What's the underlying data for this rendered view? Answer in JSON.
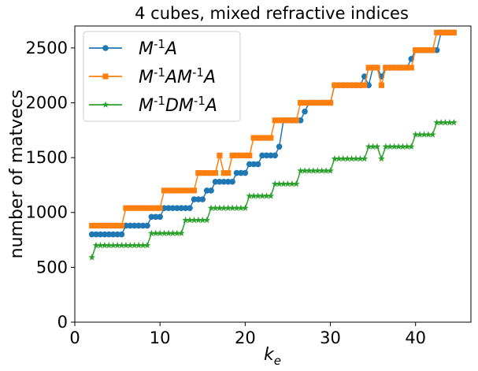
{
  "chart_data": {
    "type": "line",
    "title": "4 cubes, mixed refractive indices",
    "xlabel": "k",
    "xlabel_sub": "e",
    "ylabel": "number of matvecs",
    "xlim": [
      0,
      46.5
    ],
    "ylim": [
      0,
      2700
    ],
    "xticks": [
      0,
      10,
      20,
      30,
      40
    ],
    "yticks": [
      0,
      500,
      1000,
      1500,
      2000,
      2500
    ],
    "grid": false,
    "legend_position": "top-left",
    "series": [
      {
        "name": "M^{-1}A",
        "color": "#1f77b4",
        "marker": "circle",
        "points": [
          [
            2.0,
            800
          ],
          [
            2.5,
            800
          ],
          [
            3.0,
            800
          ],
          [
            3.5,
            800
          ],
          [
            4.0,
            800
          ],
          [
            4.5,
            800
          ],
          [
            5.0,
            800
          ],
          [
            5.5,
            800
          ],
          [
            6.0,
            880
          ],
          [
            6.5,
            880
          ],
          [
            7.0,
            880
          ],
          [
            7.5,
            880
          ],
          [
            8.0,
            880
          ],
          [
            8.5,
            880
          ],
          [
            9.0,
            960
          ],
          [
            9.5,
            960
          ],
          [
            10.0,
            960
          ],
          [
            10.5,
            1040
          ],
          [
            11.0,
            1040
          ],
          [
            11.5,
            1040
          ],
          [
            12.0,
            1040
          ],
          [
            12.5,
            1040
          ],
          [
            13.0,
            1040
          ],
          [
            13.5,
            1040
          ],
          [
            14.0,
            1120
          ],
          [
            14.5,
            1120
          ],
          [
            15.0,
            1120
          ],
          [
            15.5,
            1200
          ],
          [
            16.0,
            1200
          ],
          [
            16.5,
            1280
          ],
          [
            17.0,
            1280
          ],
          [
            17.5,
            1280
          ],
          [
            18.0,
            1280
          ],
          [
            18.5,
            1280
          ],
          [
            19.0,
            1360
          ],
          [
            19.5,
            1360
          ],
          [
            20.0,
            1360
          ],
          [
            20.5,
            1440
          ],
          [
            21.0,
            1440
          ],
          [
            21.5,
            1440
          ],
          [
            22.0,
            1520
          ],
          [
            22.5,
            1520
          ],
          [
            23.0,
            1520
          ],
          [
            23.5,
            1520
          ],
          [
            24.0,
            1600
          ],
          [
            24.5,
            1840
          ],
          [
            25.0,
            1840
          ],
          [
            25.5,
            1840
          ],
          [
            26.0,
            1840
          ],
          [
            26.5,
            1840
          ],
          [
            27.0,
            1920
          ],
          [
            27.5,
            2000
          ],
          [
            28.0,
            2000
          ],
          [
            28.5,
            2000
          ],
          [
            29.0,
            2000
          ],
          [
            29.5,
            2000
          ],
          [
            30.0,
            2000
          ],
          [
            30.5,
            2160
          ],
          [
            31.0,
            2160
          ],
          [
            31.5,
            2160
          ],
          [
            32.0,
            2160
          ],
          [
            32.5,
            2160
          ],
          [
            33.0,
            2160
          ],
          [
            33.5,
            2160
          ],
          [
            34.0,
            2240
          ],
          [
            34.5,
            2160
          ],
          [
            35.0,
            2320
          ],
          [
            35.5,
            2320
          ],
          [
            36.0,
            2240
          ],
          [
            36.5,
            2320
          ],
          [
            37.0,
            2320
          ],
          [
            37.5,
            2320
          ],
          [
            38.0,
            2320
          ],
          [
            38.5,
            2320
          ],
          [
            39.0,
            2320
          ],
          [
            39.5,
            2400
          ],
          [
            40.0,
            2480
          ],
          [
            40.5,
            2480
          ],
          [
            41.0,
            2480
          ],
          [
            41.5,
            2480
          ],
          [
            42.0,
            2480
          ],
          [
            42.5,
            2480
          ],
          [
            43.0,
            2640
          ],
          [
            43.5,
            2640
          ],
          [
            44.0,
            2640
          ],
          [
            44.5,
            2640
          ]
        ]
      },
      {
        "name": "M^{-1}AM^{-1}A",
        "color": "#ff7f0e",
        "marker": "square",
        "points": [
          [
            2.0,
            880
          ],
          [
            2.5,
            880
          ],
          [
            3.0,
            880
          ],
          [
            3.5,
            880
          ],
          [
            4.0,
            880
          ],
          [
            4.5,
            880
          ],
          [
            5.0,
            880
          ],
          [
            5.5,
            880
          ],
          [
            6.0,
            1040
          ],
          [
            6.5,
            1040
          ],
          [
            7.0,
            1040
          ],
          [
            7.5,
            1040
          ],
          [
            8.0,
            1040
          ],
          [
            8.5,
            1040
          ],
          [
            9.0,
            1040
          ],
          [
            9.5,
            1040
          ],
          [
            10.0,
            1040
          ],
          [
            10.5,
            1200
          ],
          [
            11.0,
            1200
          ],
          [
            11.5,
            1200
          ],
          [
            12.0,
            1200
          ],
          [
            12.5,
            1200
          ],
          [
            13.0,
            1200
          ],
          [
            13.5,
            1200
          ],
          [
            14.0,
            1200
          ],
          [
            14.5,
            1360
          ],
          [
            15.0,
            1360
          ],
          [
            15.5,
            1360
          ],
          [
            16.0,
            1360
          ],
          [
            16.5,
            1360
          ],
          [
            17.0,
            1520
          ],
          [
            17.5,
            1360
          ],
          [
            18.0,
            1360
          ],
          [
            18.5,
            1520
          ],
          [
            19.0,
            1520
          ],
          [
            19.5,
            1520
          ],
          [
            20.0,
            1520
          ],
          [
            20.5,
            1520
          ],
          [
            21.0,
            1680
          ],
          [
            21.5,
            1680
          ],
          [
            22.0,
            1680
          ],
          [
            22.5,
            1680
          ],
          [
            23.0,
            1680
          ],
          [
            23.5,
            1840
          ],
          [
            24.0,
            1840
          ],
          [
            24.5,
            1840
          ],
          [
            25.0,
            1840
          ],
          [
            25.5,
            1840
          ],
          [
            26.0,
            1840
          ],
          [
            26.5,
            2000
          ],
          [
            27.0,
            2000
          ],
          [
            27.5,
            2000
          ],
          [
            28.0,
            2000
          ],
          [
            28.5,
            2000
          ],
          [
            29.0,
            2000
          ],
          [
            29.5,
            2000
          ],
          [
            30.0,
            2000
          ],
          [
            30.5,
            2160
          ],
          [
            31.0,
            2160
          ],
          [
            31.5,
            2160
          ],
          [
            32.0,
            2160
          ],
          [
            32.5,
            2160
          ],
          [
            33.0,
            2160
          ],
          [
            33.5,
            2160
          ],
          [
            34.0,
            2160
          ],
          [
            34.5,
            2320
          ],
          [
            35.0,
            2320
          ],
          [
            35.5,
            2320
          ],
          [
            36.0,
            2160
          ],
          [
            36.5,
            2320
          ],
          [
            37.0,
            2320
          ],
          [
            37.5,
            2320
          ],
          [
            38.0,
            2320
          ],
          [
            38.5,
            2320
          ],
          [
            39.0,
            2320
          ],
          [
            39.5,
            2320
          ],
          [
            40.0,
            2480
          ],
          [
            40.5,
            2480
          ],
          [
            41.0,
            2480
          ],
          [
            41.5,
            2480
          ],
          [
            42.0,
            2480
          ],
          [
            42.5,
            2640
          ],
          [
            43.0,
            2640
          ],
          [
            43.5,
            2640
          ],
          [
            44.0,
            2640
          ],
          [
            44.5,
            2640
          ]
        ]
      },
      {
        "name": "M^{-1}DM^{-1}A",
        "color": "#2ca02c",
        "marker": "star",
        "points": [
          [
            2.0,
            590
          ],
          [
            2.5,
            700
          ],
          [
            3.0,
            700
          ],
          [
            3.5,
            700
          ],
          [
            4.0,
            700
          ],
          [
            4.5,
            700
          ],
          [
            5.0,
            700
          ],
          [
            5.5,
            700
          ],
          [
            6.0,
            700
          ],
          [
            6.5,
            700
          ],
          [
            7.0,
            700
          ],
          [
            7.5,
            700
          ],
          [
            8.0,
            700
          ],
          [
            8.5,
            700
          ],
          [
            9.0,
            810
          ],
          [
            9.5,
            810
          ],
          [
            10.0,
            810
          ],
          [
            10.5,
            810
          ],
          [
            11.0,
            810
          ],
          [
            11.5,
            810
          ],
          [
            12.0,
            810
          ],
          [
            12.5,
            810
          ],
          [
            13.0,
            930
          ],
          [
            13.5,
            930
          ],
          [
            14.0,
            930
          ],
          [
            14.5,
            930
          ],
          [
            15.0,
            930
          ],
          [
            15.5,
            930
          ],
          [
            16.0,
            1040
          ],
          [
            16.5,
            1040
          ],
          [
            17.0,
            1040
          ],
          [
            17.5,
            1040
          ],
          [
            18.0,
            1040
          ],
          [
            18.5,
            1040
          ],
          [
            19.0,
            1040
          ],
          [
            19.5,
            1040
          ],
          [
            20.0,
            1040
          ],
          [
            20.5,
            1150
          ],
          [
            21.0,
            1150
          ],
          [
            21.5,
            1150
          ],
          [
            22.0,
            1150
          ],
          [
            22.5,
            1150
          ],
          [
            23.0,
            1150
          ],
          [
            23.5,
            1260
          ],
          [
            24.0,
            1260
          ],
          [
            24.5,
            1260
          ],
          [
            25.0,
            1260
          ],
          [
            25.5,
            1260
          ],
          [
            26.0,
            1260
          ],
          [
            26.5,
            1380
          ],
          [
            27.0,
            1380
          ],
          [
            27.5,
            1380
          ],
          [
            28.0,
            1380
          ],
          [
            28.5,
            1380
          ],
          [
            29.0,
            1380
          ],
          [
            29.5,
            1380
          ],
          [
            30.0,
            1380
          ],
          [
            30.5,
            1490
          ],
          [
            31.0,
            1490
          ],
          [
            31.5,
            1490
          ],
          [
            32.0,
            1490
          ],
          [
            32.5,
            1490
          ],
          [
            33.0,
            1490
          ],
          [
            33.5,
            1490
          ],
          [
            34.0,
            1490
          ],
          [
            34.5,
            1600
          ],
          [
            35.0,
            1600
          ],
          [
            35.5,
            1600
          ],
          [
            36.0,
            1490
          ],
          [
            36.5,
            1600
          ],
          [
            37.0,
            1600
          ],
          [
            37.5,
            1600
          ],
          [
            38.0,
            1600
          ],
          [
            38.5,
            1600
          ],
          [
            39.0,
            1600
          ],
          [
            39.5,
            1600
          ],
          [
            40.0,
            1710
          ],
          [
            40.5,
            1710
          ],
          [
            41.0,
            1710
          ],
          [
            41.5,
            1710
          ],
          [
            42.0,
            1710
          ],
          [
            42.5,
            1820
          ],
          [
            43.0,
            1820
          ],
          [
            43.5,
            1820
          ],
          [
            44.0,
            1820
          ],
          [
            44.5,
            1820
          ]
        ]
      }
    ]
  }
}
